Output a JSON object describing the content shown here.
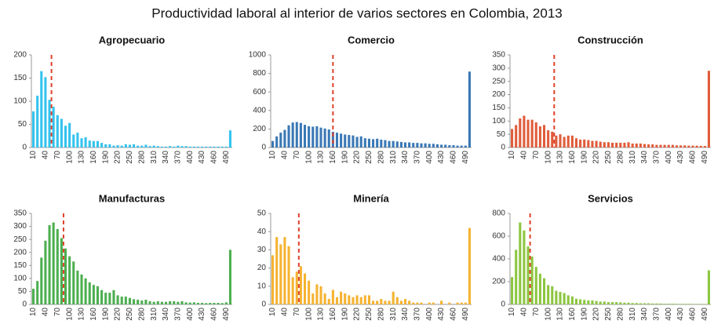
{
  "title": "Productividad laboral al interior de varios sectores en Colombia, 2013",
  "chart_data": [
    {
      "type": "bar",
      "title": "Agropecuario",
      "color": "#33c3ee",
      "ylim": [
        0,
        200
      ],
      "yticks": [
        0,
        50,
        100,
        150,
        200
      ],
      "xlim": [
        5,
        505
      ],
      "vline": 55,
      "vline_color": "#e0402a",
      "categories": [
        "10",
        null,
        null,
        "40",
        null,
        null,
        "70",
        null,
        null,
        "100",
        null,
        null,
        "130",
        null,
        null,
        "160",
        null,
        null,
        "190",
        null,
        null,
        "220",
        null,
        null,
        "250",
        null,
        null,
        "280",
        null,
        null,
        "310",
        null,
        null,
        "340",
        null,
        null,
        "370",
        null,
        null,
        "400",
        null,
        null,
        "430",
        null,
        null,
        "460",
        null,
        null,
        "490",
        null
      ],
      "values": [
        78,
        112,
        165,
        152,
        103,
        88,
        70,
        62,
        47,
        53,
        28,
        32,
        20,
        22,
        15,
        14,
        14,
        10,
        7,
        7,
        4,
        5,
        4,
        7,
        6,
        7,
        4,
        4,
        6,
        3,
        4,
        3,
        2,
        2,
        3,
        2,
        4,
        3,
        3,
        2,
        2,
        2,
        2,
        2,
        2,
        2,
        2,
        2,
        2,
        37
      ]
    },
    {
      "type": "bar",
      "title": "Comercio",
      "color": "#3a78b5",
      "ylim": [
        0,
        1000
      ],
      "yticks": [
        0,
        200,
        400,
        600,
        800,
        1000
      ],
      "xlim": [
        5,
        505
      ],
      "vline": 160,
      "vline_color": "#e0402a",
      "categories": [
        "10",
        null,
        null,
        "40",
        null,
        null,
        "70",
        null,
        null,
        "100",
        null,
        null,
        "130",
        null,
        null,
        "160",
        null,
        null,
        "190",
        null,
        null,
        "220",
        null,
        null,
        "250",
        null,
        null,
        "280",
        null,
        null,
        "310",
        null,
        null,
        "340",
        null,
        null,
        "370",
        null,
        null,
        "400",
        null,
        null,
        "430",
        null,
        null,
        "460",
        null,
        null,
        "490",
        null
      ],
      "values": [
        70,
        120,
        160,
        190,
        240,
        270,
        275,
        265,
        245,
        230,
        225,
        230,
        215,
        205,
        195,
        170,
        160,
        150,
        140,
        135,
        130,
        115,
        120,
        100,
        95,
        90,
        95,
        85,
        80,
        70,
        70,
        65,
        60,
        55,
        55,
        50,
        50,
        45,
        45,
        40,
        40,
        35,
        30,
        30,
        25,
        25,
        20,
        20,
        20,
        820
      ]
    },
    {
      "type": "bar",
      "title": "Construcción",
      "color": "#e05c3a",
      "ylim": [
        0,
        350
      ],
      "yticks": [
        0,
        50,
        100,
        150,
        200,
        250,
        300,
        350
      ],
      "xlim": [
        5,
        505
      ],
      "vline": 115,
      "vline_color": "#e0402a",
      "categories": [
        "10",
        null,
        null,
        "40",
        null,
        null,
        "70",
        null,
        null,
        "100",
        null,
        null,
        "130",
        null,
        null,
        "160",
        null,
        null,
        "190",
        null,
        null,
        "220",
        null,
        null,
        "250",
        null,
        null,
        "280",
        null,
        null,
        "310",
        null,
        null,
        "340",
        null,
        null,
        "370",
        null,
        null,
        "400",
        null,
        null,
        "430",
        null,
        null,
        "460",
        null,
        null,
        "490",
        null
      ],
      "values": [
        70,
        85,
        110,
        120,
        105,
        105,
        95,
        80,
        85,
        65,
        60,
        45,
        50,
        40,
        45,
        45,
        35,
        30,
        30,
        28,
        25,
        25,
        22,
        20,
        20,
        18,
        18,
        18,
        18,
        20,
        15,
        15,
        15,
        13,
        12,
        12,
        10,
        10,
        10,
        10,
        10,
        8,
        8,
        8,
        7,
        7,
        7,
        6,
        6,
        290
      ]
    },
    {
      "type": "bar",
      "title": "Manufacturas",
      "color": "#4caf50",
      "ylim": [
        0,
        350
      ],
      "yticks": [
        0,
        50,
        100,
        150,
        200,
        250,
        300,
        350
      ],
      "xlim": [
        5,
        505
      ],
      "vline": 85,
      "vline_color": "#e0402a",
      "categories": [
        "10",
        null,
        null,
        "40",
        null,
        null,
        "70",
        null,
        null,
        "100",
        null,
        null,
        "130",
        null,
        null,
        "160",
        null,
        null,
        "190",
        null,
        null,
        "220",
        null,
        null,
        "250",
        null,
        null,
        "280",
        null,
        null,
        "310",
        null,
        null,
        "340",
        null,
        null,
        "370",
        null,
        null,
        "400",
        null,
        null,
        "430",
        null,
        null,
        "460",
        null,
        null,
        "490",
        null
      ],
      "values": [
        60,
        90,
        180,
        245,
        305,
        315,
        290,
        255,
        215,
        185,
        165,
        130,
        115,
        100,
        85,
        75,
        70,
        55,
        45,
        45,
        55,
        35,
        30,
        30,
        25,
        20,
        18,
        15,
        18,
        12,
        10,
        12,
        10,
        10,
        12,
        12,
        10,
        12,
        8,
        7,
        8,
        6,
        6,
        5,
        6,
        6,
        6,
        5,
        8,
        210
      ]
    },
    {
      "type": "bar",
      "title": "Minería",
      "color": "#f5b331",
      "ylim": [
        0,
        50
      ],
      "yticks": [
        0,
        10,
        20,
        30,
        40,
        50
      ],
      "xlim": [
        5,
        505
      ],
      "vline": 75,
      "vline_color": "#e0402a",
      "categories": [
        "10",
        null,
        null,
        "40",
        null,
        null,
        "70",
        null,
        null,
        "100",
        null,
        null,
        "130",
        null,
        null,
        "160",
        null,
        null,
        "190",
        null,
        null,
        "220",
        null,
        null,
        "250",
        null,
        null,
        "280",
        null,
        null,
        "310",
        null,
        null,
        "340",
        null,
        null,
        "370",
        null,
        null,
        "400",
        null,
        null,
        "430",
        null,
        null,
        "460",
        null,
        null,
        "490",
        null
      ],
      "values": [
        27,
        37,
        33,
        37,
        32,
        15,
        18,
        21,
        17,
        13,
        6,
        11,
        10,
        6,
        3,
        8,
        4,
        7,
        6,
        5,
        4,
        5,
        4,
        5,
        5,
        2,
        2,
        3,
        2,
        2,
        7,
        4,
        2,
        3,
        2,
        1,
        1,
        1,
        0,
        1,
        1,
        0,
        2,
        0,
        1,
        0,
        1,
        1,
        1,
        42
      ]
    },
    {
      "type": "bar",
      "title": "Servicios",
      "color": "#8cc63f",
      "ylim": [
        0,
        800
      ],
      "yticks": [
        0,
        200,
        400,
        600,
        800
      ],
      "xlim": [
        5,
        505
      ],
      "vline": 55,
      "vline_color": "#e0402a",
      "categories": [
        "10",
        null,
        null,
        "40",
        null,
        null,
        "70",
        null,
        null,
        "100",
        null,
        null,
        "130",
        null,
        null,
        "160",
        null,
        null,
        "190",
        null,
        null,
        "220",
        null,
        null,
        "250",
        null,
        null,
        "280",
        null,
        null,
        "310",
        null,
        null,
        "340",
        null,
        null,
        "370",
        null,
        null,
        "400",
        null,
        null,
        "430",
        null,
        null,
        "460",
        null,
        null,
        "490",
        null
      ],
      "values": [
        240,
        480,
        720,
        650,
        510,
        420,
        330,
        270,
        230,
        170,
        160,
        120,
        110,
        100,
        80,
        70,
        50,
        45,
        40,
        35,
        35,
        30,
        25,
        25,
        20,
        20,
        20,
        18,
        15,
        15,
        12,
        12,
        10,
        10,
        10,
        8,
        8,
        8,
        6,
        6,
        6,
        5,
        5,
        5,
        5,
        4,
        4,
        4,
        4,
        300
      ]
    }
  ]
}
